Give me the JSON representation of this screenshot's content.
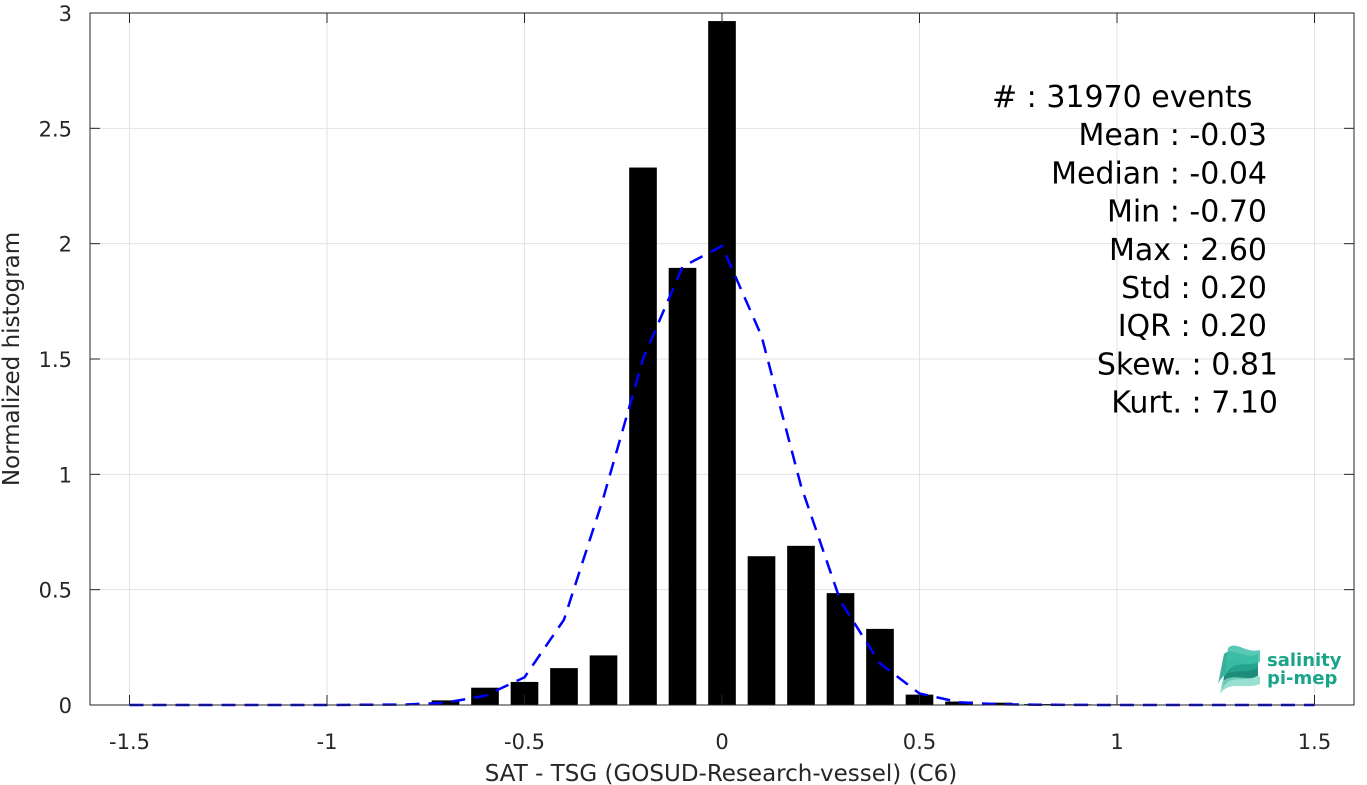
{
  "chart_data": {
    "type": "bar",
    "xlabel": "SAT - TSG (GOSUD-Research-vessel) (C6)",
    "ylabel": "Normalized histogram",
    "xlim": [
      -1.6,
      1.6
    ],
    "ylim": [
      0,
      3
    ],
    "xticks": [
      -1.5,
      -1,
      -0.5,
      0,
      0.5,
      1,
      1.5
    ],
    "xtick_labels": [
      "-1.5",
      "-1",
      "-0.5",
      "0",
      "0.5",
      "1",
      "1.5"
    ],
    "yticks": [
      0,
      0.5,
      1,
      1.5,
      2,
      2.5,
      3
    ],
    "ytick_labels": [
      "0",
      "0.5",
      "1",
      "1.5",
      "2",
      "2.5",
      "3"
    ],
    "grid": true,
    "bar_width": 0.07,
    "bar_color": "#000000",
    "bars": {
      "x": [
        -0.7,
        -0.6,
        -0.5,
        -0.4,
        -0.3,
        -0.2,
        -0.1,
        0.0,
        0.1,
        0.2,
        0.3,
        0.4,
        0.5,
        0.6,
        0.7,
        0.8,
        0.9,
        1.0,
        1.1,
        1.2,
        1.3,
        1.4,
        1.5
      ],
      "values": [
        0.02,
        0.075,
        0.1,
        0.16,
        0.215,
        2.33,
        1.895,
        2.965,
        0.645,
        0.69,
        0.485,
        0.33,
        0.045,
        0.015,
        0.01,
        0.004,
        0.003,
        0.003,
        0.002,
        0.002,
        0.002,
        0.002,
        0.002
      ]
    },
    "fit_line": {
      "style": "dashed",
      "color": "#0000ff",
      "x": [
        -1.5,
        -1.0,
        -0.8,
        -0.7,
        -0.6,
        -0.5,
        -0.4,
        -0.3,
        -0.2,
        -0.1,
        0.0,
        0.1,
        0.2,
        0.3,
        0.4,
        0.5,
        0.6,
        0.7,
        0.8,
        1.0,
        1.5
      ],
      "y": [
        0.0,
        0.0,
        0.002,
        0.01,
        0.04,
        0.12,
        0.37,
        0.9,
        1.5,
        1.9,
        1.99,
        1.6,
        0.95,
        0.45,
        0.18,
        0.05,
        0.012,
        0.003,
        0.001,
        0.0,
        0.0
      ]
    },
    "stats": [
      {
        "label": "#",
        "sep": "  : ",
        "value": "31970 events"
      },
      {
        "label": "Mean",
        "sep": " : ",
        "value": "-0.03"
      },
      {
        "label": "Median",
        "sep": " : ",
        "value": "-0.04"
      },
      {
        "label": "Min",
        "sep": " : ",
        "value": "-0.70"
      },
      {
        "label": "Max",
        "sep": " : ",
        "value": "2.60"
      },
      {
        "label": "Std",
        "sep": " : ",
        "value": "0.20"
      },
      {
        "label": "IQR",
        "sep": " : ",
        "value": "0.20"
      },
      {
        "label": "Skew.",
        "sep": " : ",
        "value": "0.81"
      },
      {
        "label": "Kurt.",
        "sep": " : ",
        "value": "7.10"
      }
    ]
  },
  "logo": {
    "line1": "salinity",
    "line2": "pi-mep",
    "color": "#1aa58a"
  }
}
